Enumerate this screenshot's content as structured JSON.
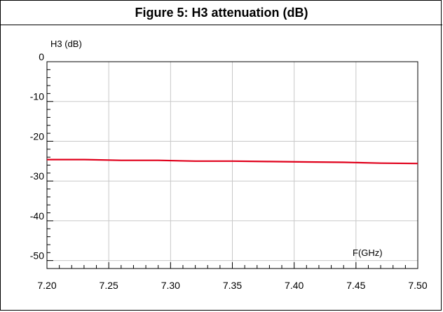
{
  "chart_data": {
    "type": "line",
    "title": "Figure 5: H3 attenuation (dB)",
    "ylabel": "H3 (dB)",
    "xlabel": "F(GHz)",
    "xlim": [
      7.2,
      7.5
    ],
    "ylim": [
      -52,
      0
    ],
    "x_ticks": [
      "7.20",
      "7.25",
      "7.30",
      "7.35",
      "7.40",
      "7.45",
      "7.50"
    ],
    "y_ticks": [
      "0",
      "-10",
      "-20",
      "-30",
      "-40",
      "-50"
    ],
    "grid": true,
    "series": [
      {
        "color": "#e0001b",
        "x": [
          7.2,
          7.23,
          7.26,
          7.29,
          7.32,
          7.35,
          7.38,
          7.41,
          7.44,
          7.47,
          7.5
        ],
        "y": [
          -24.6,
          -24.6,
          -24.8,
          -24.8,
          -25.0,
          -25.0,
          -25.1,
          -25.2,
          -25.3,
          -25.5,
          -25.6
        ]
      }
    ]
  }
}
